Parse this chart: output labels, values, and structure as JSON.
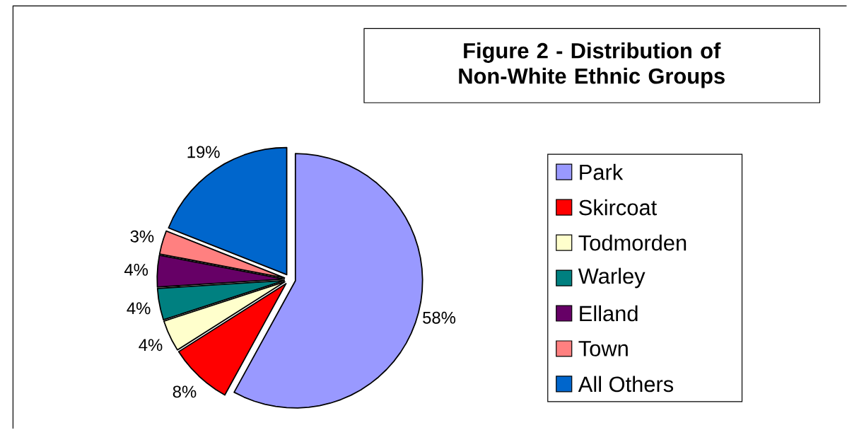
{
  "chart_data": {
    "type": "pie",
    "title": "Figure 2 - Distribution of Non-White Ethnic Groups",
    "categories": [
      "Park",
      "Skircoat",
      "Todmorden",
      "Warley",
      "Elland",
      "Town",
      "All Others"
    ],
    "values": [
      58,
      8,
      4,
      4,
      4,
      3,
      19
    ],
    "value_labels": [
      "58%",
      "8%",
      "4%",
      "4%",
      "4%",
      "3%",
      "19%"
    ],
    "colors": [
      "#9999ff",
      "#ff0000",
      "#ffffcc",
      "#008080",
      "#660066",
      "#ff8080",
      "#0066cc"
    ],
    "legend": "right"
  }
}
